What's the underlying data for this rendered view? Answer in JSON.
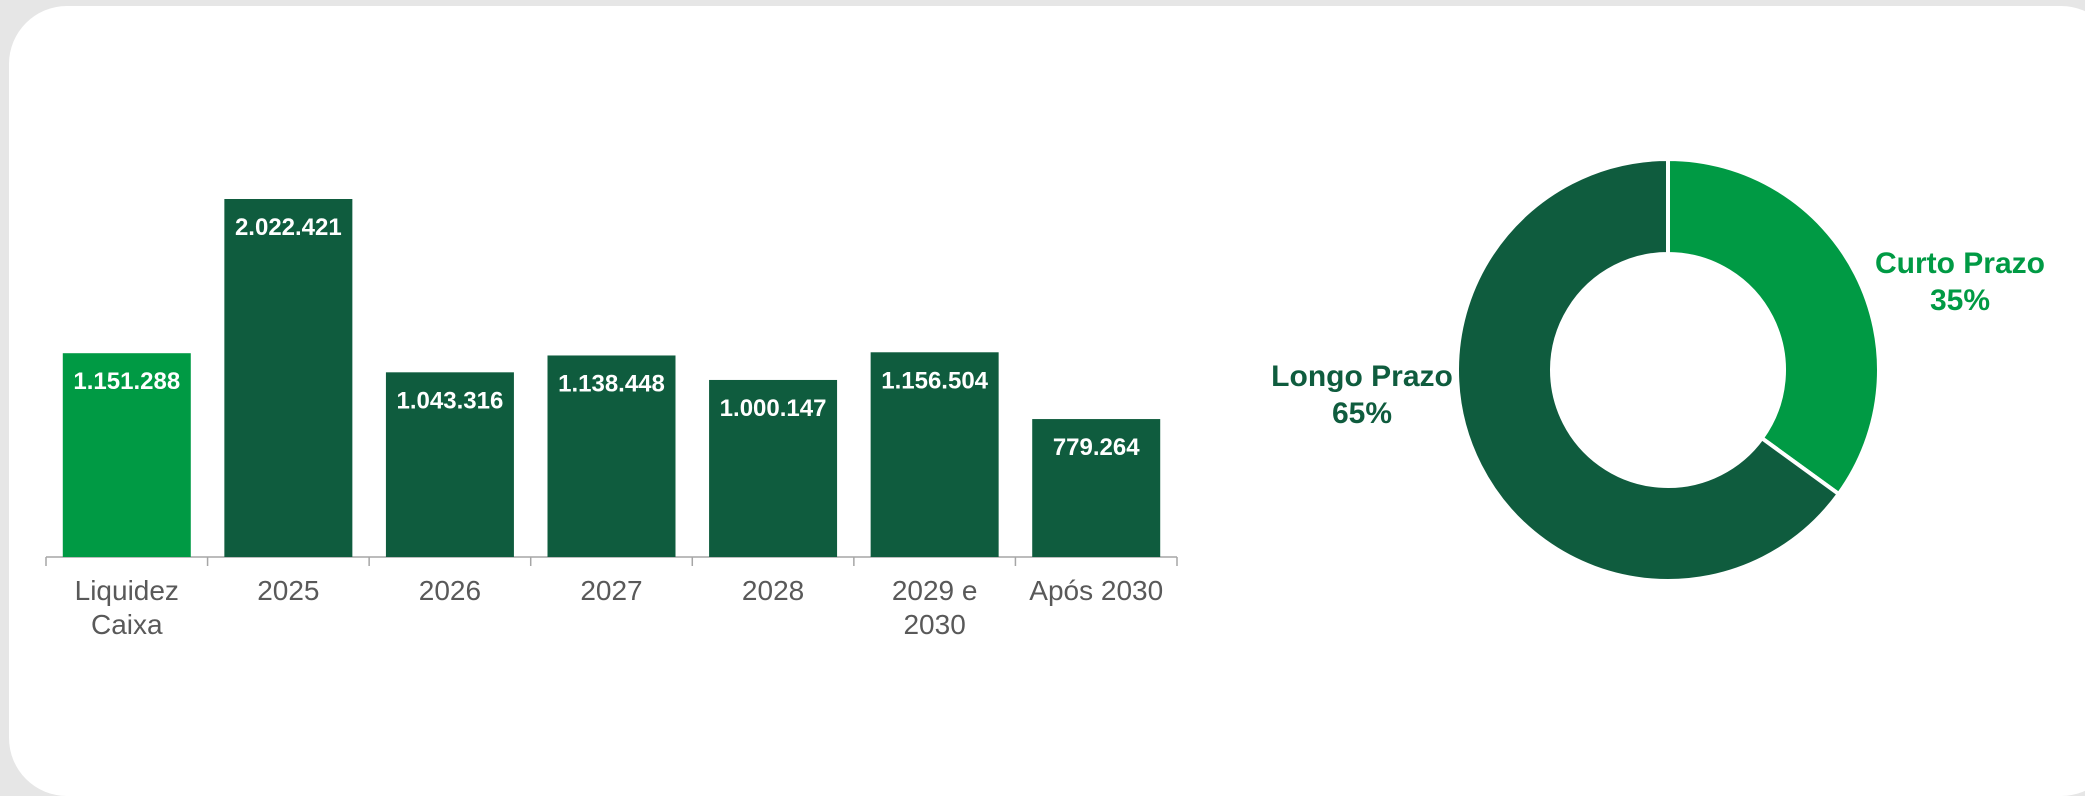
{
  "chart_data": [
    {
      "type": "bar",
      "categories": [
        "Liquidez Caixa",
        "2025",
        "2026",
        "2027",
        "2028",
        "2029 e 2030",
        "Após 2030"
      ],
      "category_lines": [
        [
          "Liquidez",
          "Caixa"
        ],
        [
          "2025"
        ],
        [
          "2026"
        ],
        [
          "2027"
        ],
        [
          "2028"
        ],
        [
          "2029 e",
          "2030"
        ],
        [
          "Após 2030"
        ]
      ],
      "values": [
        1151288,
        2022421,
        1043316,
        1138448,
        1000147,
        1156504,
        779264
      ],
      "value_labels": [
        "1.151.288",
        "2.022.421",
        "1.043.316",
        "1.138.448",
        "1.000.147",
        "1.156.504",
        "779.264"
      ],
      "bar_colors": [
        "#009a44",
        "#0f5c3e",
        "#0f5c3e",
        "#0f5c3e",
        "#0f5c3e",
        "#0f5c3e",
        "#0f5c3e"
      ],
      "ylim": [
        0,
        2022421
      ],
      "grid": false,
      "title": "",
      "xlabel": "",
      "ylabel": ""
    },
    {
      "type": "pie",
      "style": "donut",
      "slices": [
        {
          "name": "Curto Prazo",
          "value": 35,
          "label": "35%",
          "color": "#009a44"
        },
        {
          "name": "Longo Prazo",
          "value": 65,
          "label": "65%",
          "color": "#0f5c3e"
        }
      ],
      "title": ""
    }
  ]
}
